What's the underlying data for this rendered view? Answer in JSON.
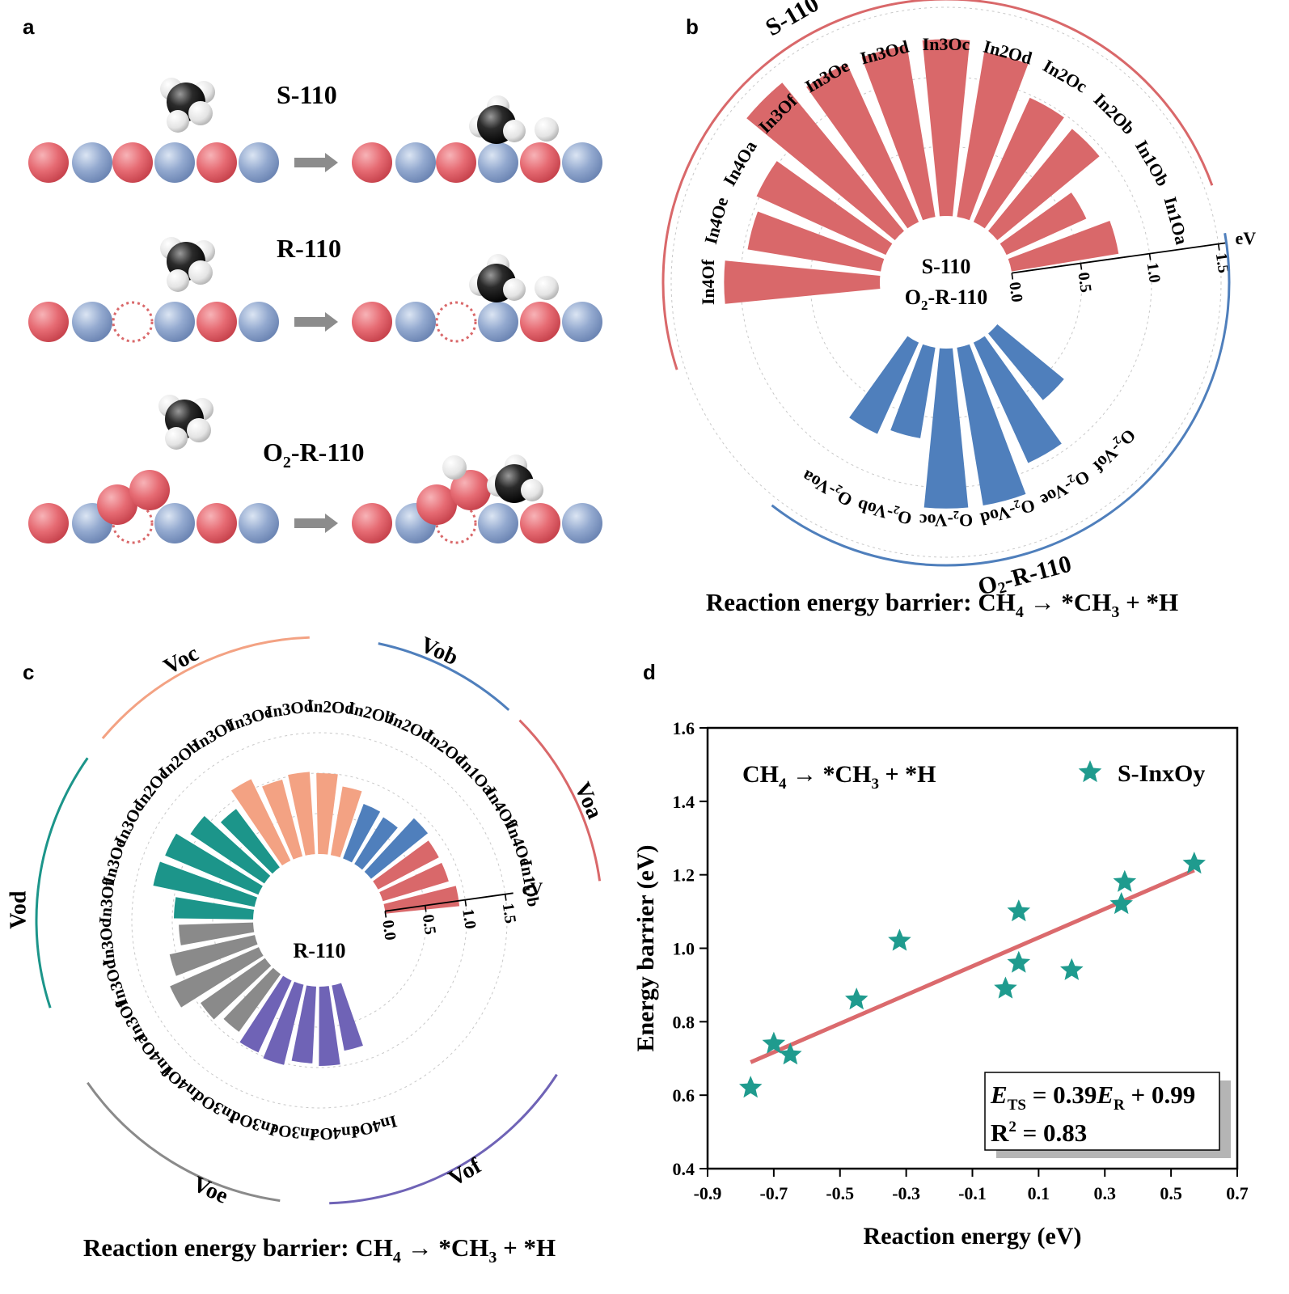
{
  "panels": {
    "a": {
      "label": "a",
      "rows": [
        {
          "label_main": "S-110",
          "label_sub": ""
        },
        {
          "label_main": "R-110",
          "label_sub": ""
        },
        {
          "label_prefix": "O",
          "label_sub": "2",
          "label_suffix": "-R-110"
        }
      ]
    },
    "b": {
      "label": "b"
    },
    "c": {
      "label": "c"
    },
    "d": {
      "label": "d"
    }
  },
  "caption_b": {
    "pre": "Reaction energy barrier: CH",
    "s1": "4",
    "mid": " → *CH",
    "s2": "3",
    "post": " + *H"
  },
  "caption_c": {
    "pre": "Reaction energy barrier: CH",
    "s1": "4",
    "mid": " → *CH",
    "s2": "3",
    "post": " + *H"
  },
  "colors": {
    "red": "#d9686a",
    "blue": "#4f7fbc",
    "salmon": "#f3a283",
    "teal": "#1c958a",
    "gray": "#8a8a8a",
    "purple": "#6f63b6",
    "atom_red": "#e66b73",
    "atom_blue": "#93a9cf",
    "line": "#db6a6d",
    "marker": "#1f9b8e"
  },
  "chart_data": [
    {
      "type": "bar",
      "subtype": "radial",
      "center_labels": [
        "S-110",
        "O2-R-110"
      ],
      "unit": "eV",
      "radial_ticks": [
        "0.0",
        "0.5",
        "1.0",
        "1.5"
      ],
      "ylim": [
        0,
        1.5
      ],
      "groups": [
        {
          "name": "S-110",
          "color": "red",
          "categories": [
            "In1Oa",
            "In1Ob",
            "In2Ob",
            "In2Oc",
            "In2Od",
            "In3Oc",
            "In3Od",
            "In3Oe",
            "In3Of",
            "In4Oa",
            "In4Oe",
            "In4Of"
          ],
          "values": [
            0.78,
            0.63,
            0.95,
            0.98,
            1.2,
            1.27,
            1.25,
            1.25,
            1.38,
            1.02,
            0.97,
            1.12
          ]
        },
        {
          "name": "O2-R-110",
          "label_prefix": "O",
          "label_sub": "2",
          "label_suffix": "-R-110",
          "color": "blue",
          "categories": [
            "O2-Voa",
            "O2-Vob",
            "O2-Voc",
            "O2-Vod",
            "O2-Voe",
            "O2-Vof"
          ],
          "values": [
            0.72,
            0.66,
            1.15,
            1.15,
            0.95,
            0.62
          ]
        }
      ]
    },
    {
      "type": "bar",
      "subtype": "radial",
      "center_labels": [
        "R-110"
      ],
      "unit": "eV",
      "radial_ticks": [
        "0.0",
        "0.5",
        "1.0",
        "1.5"
      ],
      "ylim": [
        0,
        1.5
      ],
      "groups": [
        {
          "name": "Voa",
          "color": "red",
          "categories": [
            "In1Ob",
            "In4Oe",
            "In4Of"
          ],
          "values": [
            0.92,
            0.85,
            0.85
          ]
        },
        {
          "name": "Vob",
          "color": "blue",
          "categories": [
            "In1Oa",
            "In2Oc",
            "In2Od"
          ],
          "values": [
            0.9,
            0.68,
            0.72
          ]
        },
        {
          "name": "Voc",
          "color": "salmon",
          "categories": [
            "In2Ob",
            "In2Od",
            "In3Od",
            "In3Oe",
            "In3Of"
          ],
          "values": [
            0.86,
            1.0,
            1.02,
            0.98,
            1.12
          ]
        },
        {
          "name": "Vod",
          "color": "teal",
          "categories": [
            "In2Ob",
            "In2Oc",
            "In3Oc",
            "In3Oe",
            "In3Of"
          ],
          "values": [
            0.9,
            1.1,
            1.25,
            1.28,
            0.98
          ]
        },
        {
          "name": "Voe",
          "color": "gray",
          "categories": [
            "In3Oc",
            "In3Od",
            "In3Of",
            "In4Oa",
            "In4Of"
          ],
          "values": [
            0.92,
            1.08,
            1.2,
            0.97,
            0.88
          ]
        },
        {
          "name": "Vof",
          "color": "purple",
          "categories": [
            "In3Oc",
            "In3Od",
            "In3Oe",
            "In4Oa",
            "In4Oe"
          ],
          "values": [
            0.98,
            1.02,
            0.95,
            0.98,
            0.82
          ]
        }
      ]
    },
    {
      "type": "scatter",
      "xlabel": "Reaction energy (eV)",
      "ylabel": "Energy barrier (eV)",
      "xlim": [
        -0.9,
        0.7
      ],
      "ylim": [
        0.4,
        1.6
      ],
      "xticks": [
        "-0.9",
        "-0.7",
        "-0.5",
        "-0.3",
        "-0.1",
        "0.1",
        "0.3",
        "0.5",
        "0.7"
      ],
      "yticks": [
        "0.4",
        "0.6",
        "0.8",
        "1.0",
        "1.2",
        "1.4",
        "1.6"
      ],
      "series": [
        {
          "name": "S-InxOy",
          "x": [
            -0.77,
            -0.7,
            -0.65,
            -0.45,
            -0.32,
            0.0,
            0.04,
            0.04,
            0.2,
            0.35,
            0.36,
            0.57
          ],
          "y": [
            0.62,
            0.74,
            0.71,
            0.86,
            1.02,
            0.89,
            0.96,
            1.1,
            0.94,
            1.12,
            1.18,
            1.23
          ]
        }
      ],
      "fit": {
        "slope": 0.39,
        "intercept": 0.99,
        "x_range": [
          -0.77,
          0.57
        ]
      },
      "annotation": {
        "reaction": {
          "pre": "CH",
          "s1": "4",
          "mid": " → *CH",
          "s2": "3",
          "post": " + *H"
        },
        "equation": {
          "e": "E",
          "ts": "TS",
          "mid": " = 0.39",
          "e2": "E",
          "r": "R",
          "tail": " + 0.99"
        },
        "r2": {
          "r": "R",
          "sup": "2",
          "tail": " = 0.83"
        }
      }
    }
  ]
}
